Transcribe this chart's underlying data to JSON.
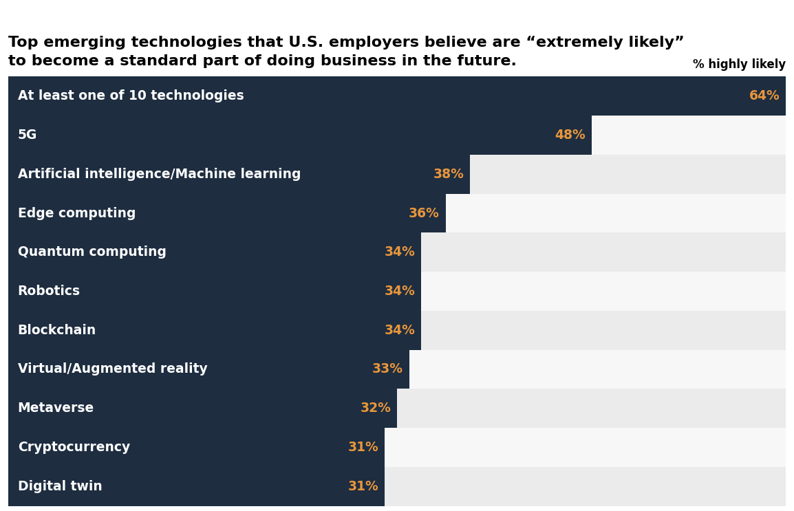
{
  "title_line1": "Top emerging technologies that U.S. employers believe are “extremely likely”",
  "title_line2": "to become a standard part of doing business in the future.",
  "column_label": "% highly likely",
  "categories": [
    "At least one of 10 technologies",
    "5G",
    "Artificial intelligence/Machine learning",
    "Edge computing",
    "Quantum computing",
    "Robotics",
    "Blockchain",
    "Virtual/Augmented reality",
    "Metaverse",
    "Cryptocurrency",
    "Digital twin"
  ],
  "values": [
    64,
    48,
    38,
    36,
    34,
    34,
    34,
    33,
    32,
    31,
    31
  ],
  "bar_color": "#1e2d40",
  "value_color": "#e8963c",
  "title_color": "#000000",
  "bg_color": "#ffffff",
  "row_even_color": "#ebebeb",
  "row_odd_color": "#f7f7f7",
  "label_color": "#ffffff",
  "xlim_max": 64,
  "title_fontsize": 16,
  "label_fontsize": 13.5,
  "value_fontsize": 13.5,
  "col_label_fontsize": 12
}
